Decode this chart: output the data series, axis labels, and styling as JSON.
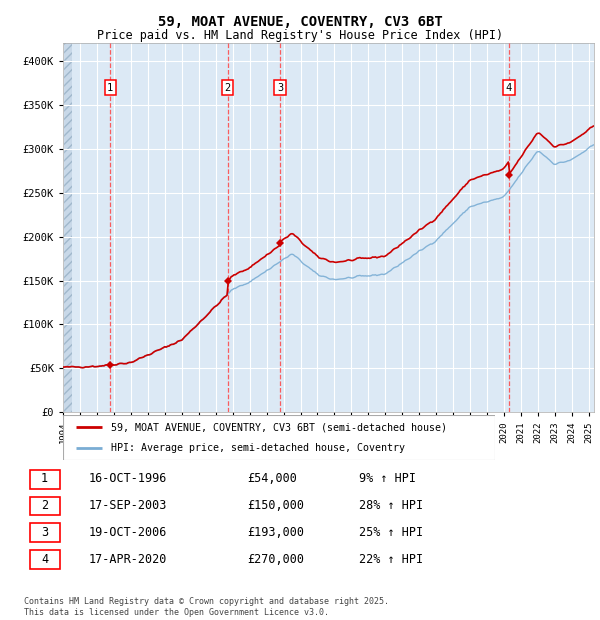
{
  "title": "59, MOAT AVENUE, COVENTRY, CV3 6BT",
  "subtitle": "Price paid vs. HM Land Registry's House Price Index (HPI)",
  "background_color": "#dce9f5",
  "plot_bg": "#dce9f5",
  "grid_color": "#ffffff",
  "sale_year_floats": [
    1996.79,
    2003.71,
    2006.79,
    2020.29
  ],
  "sale_prices": [
    54000,
    150000,
    193000,
    270000
  ],
  "sale_labels": [
    "1",
    "2",
    "3",
    "4"
  ],
  "legend_house": "59, MOAT AVENUE, COVENTRY, CV3 6BT (semi-detached house)",
  "legend_hpi": "HPI: Average price, semi-detached house, Coventry",
  "footnote": "Contains HM Land Registry data © Crown copyright and database right 2025.\nThis data is licensed under the Open Government Licence v3.0.",
  "table_rows": [
    [
      "1",
      "16-OCT-1996",
      "£54,000",
      "9% ↑ HPI"
    ],
    [
      "2",
      "17-SEP-2003",
      "£150,000",
      "28% ↑ HPI"
    ],
    [
      "3",
      "19-OCT-2006",
      "£193,000",
      "25% ↑ HPI"
    ],
    [
      "4",
      "17-APR-2020",
      "£270,000",
      "22% ↑ HPI"
    ]
  ],
  "ylim": [
    0,
    420000
  ],
  "yticks": [
    0,
    50000,
    100000,
    150000,
    200000,
    250000,
    300000,
    350000,
    400000
  ],
  "ytick_labels": [
    "£0",
    "£50K",
    "£100K",
    "£150K",
    "£200K",
    "£250K",
    "£300K",
    "£350K",
    "£400K"
  ],
  "red_line_color": "#cc0000",
  "blue_line_color": "#7aadd4",
  "vline_color": "#ff4444",
  "marker_color": "#cc0000",
  "x_start_year": 1994,
  "x_end_year": 2025
}
